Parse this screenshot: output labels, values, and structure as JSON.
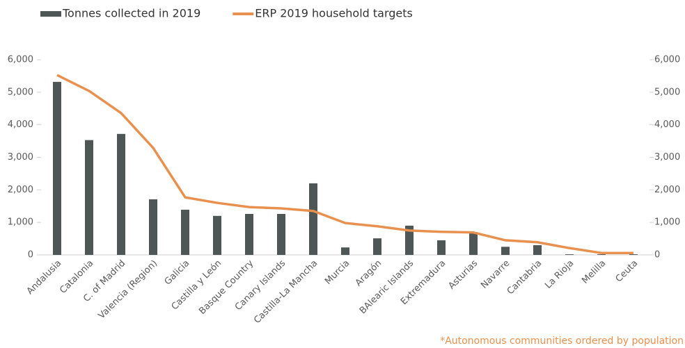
{
  "chart_data": {
    "type": "bar+line",
    "categories": [
      "Andalusia",
      "Catalonia",
      "C. of Madrid",
      "Valencia (Region)",
      "Galicia",
      "Castilla y León",
      "Basque Country",
      "Canary Islands",
      "Castilla-La Mancha",
      "Murcia",
      "Aragón",
      "BAlearic Islands",
      "Extremadura",
      "Asturias",
      "Navarre",
      "Cantabria",
      "La Rioja",
      "Melilla",
      "Ceuta"
    ],
    "series": [
      {
        "name": "Tonnes collected in 2019",
        "type": "bar",
        "color": "#4f5656",
        "values": [
          5320,
          3530,
          3720,
          1710,
          1390,
          1200,
          1260,
          1260,
          2200,
          230,
          510,
          900,
          450,
          700,
          250,
          300,
          20,
          20,
          20
        ]
      },
      {
        "name": "ERP 2019 household targets",
        "type": "line",
        "axis": "y2",
        "color": "#e8914f",
        "values": [
          5530,
          5040,
          4360,
          3290,
          1770,
          1600,
          1470,
          1430,
          1350,
          980,
          880,
          750,
          710,
          690,
          450,
          390,
          210,
          60,
          60
        ]
      }
    ],
    "ylim": [
      0,
      6000
    ],
    "yticks": [
      0,
      {
        "value": 1000,
        "label": "1,000"
      },
      {
        "value": 2000,
        "label": "2,000"
      },
      {
        "value": 3000,
        "label": "3,000"
      },
      {
        "value": 4000,
        "label": "4,000"
      },
      {
        "value": 5000,
        "label": "5,000"
      },
      {
        "value": 6000,
        "label": "6,000"
      }
    ],
    "y2lim": [
      0,
      6000
    ],
    "y2ticks": [
      0,
      {
        "value": 1000,
        "label": "1,000"
      },
      {
        "value": 2000,
        "label": "2,000"
      },
      {
        "value": 3000,
        "label": "3,000"
      },
      {
        "value": 4000,
        "label": "4,000"
      },
      {
        "value": 5000,
        "label": "5,000"
      },
      {
        "value": 6000,
        "label": "6,000"
      }
    ],
    "grid": false,
    "legend": "top",
    "annotation": "*Autonomous communities ordered by population"
  }
}
